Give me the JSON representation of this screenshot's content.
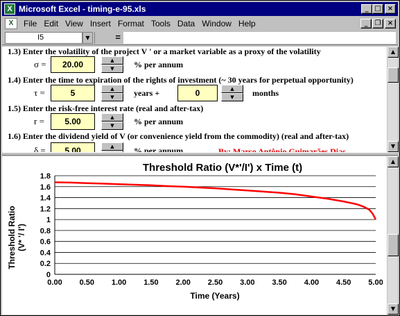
{
  "window": {
    "title": "Microsoft Excel - timing-e-95.xls",
    "app_icon": "excel-icon",
    "title_buttons": [
      "_",
      "□",
      "×"
    ]
  },
  "menubar": {
    "items": [
      "File",
      "Edit",
      "View",
      "Insert",
      "Format",
      "Tools",
      "Data",
      "Window",
      "Help"
    ],
    "doc_buttons": [
      "_",
      "❐",
      "×"
    ]
  },
  "formula_bar": {
    "name_box": "I5",
    "dropdown_glyph": "▼",
    "equals": "=",
    "formula": ""
  },
  "sheet": {
    "section_13": {
      "heading": "1.3) Enter the volatility of the project V ' or a market variable as a proxy of  the volatility",
      "symbol": "σ =",
      "value": "20.00",
      "unit": "% per annum"
    },
    "section_14": {
      "heading": "1.4) Enter the time to expiration of the rights of investment (~ 30 years for perpetual opportunity)",
      "symbol": "τ =",
      "years_value": "5",
      "years_unit": "years +",
      "months_value": "0",
      "months_unit": "months"
    },
    "section_15": {
      "heading": "1.5) Enter the risk-free interest rate (real and after-tax)",
      "symbol": "r =",
      "value": "5.00",
      "unit": "% per annum"
    },
    "section_16": {
      "heading": "1.6) Enter the dividend yield of V (or convenience yield from the commodity) (real and after-tax)",
      "symbol": "δ =",
      "value": "5.00",
      "unit": "% per annum",
      "author": "By: Marco Antônio Guimarães Dias"
    },
    "spinner_up": "▲",
    "spinner_down": "▼"
  },
  "scrollbars": {
    "up": "▲",
    "down": "▼"
  },
  "colors": {
    "title_bar": "#000080",
    "input_fill": "#ffffc0",
    "curve": "#ff0000",
    "author_text": "#e00000"
  },
  "chart_data": {
    "type": "line",
    "title": "Threshold Ratio (V*'/I')  x  Time (t)",
    "xlabel": "Time (Years)",
    "ylabel_line1": "Threshold Ratio",
    "ylabel_line2": "(V* '/ I')",
    "xlim": [
      0,
      5
    ],
    "ylim": [
      0,
      1.8
    ],
    "xticks": [
      "0.00",
      "0.50",
      "1.00",
      "1.50",
      "2.00",
      "2.50",
      "3.00",
      "3.50",
      "4.00",
      "4.50",
      "5.00"
    ],
    "yticks": [
      "0",
      "0.2",
      "0.4",
      "0.6",
      "0.8",
      "1",
      "1.2",
      "1.4",
      "1.6",
      "1.8"
    ],
    "grid": true,
    "series": [
      {
        "x": [
          0,
          0.25,
          0.5,
          0.75,
          1,
          1.25,
          1.5,
          1.75,
          2,
          2.25,
          2.5,
          2.75,
          3,
          3.25,
          3.5,
          3.75,
          4,
          4.25,
          4.5,
          4.7,
          4.8,
          4.9,
          4.95,
          5
        ],
        "y": [
          1.68,
          1.675,
          1.665,
          1.655,
          1.645,
          1.635,
          1.625,
          1.61,
          1.6,
          1.585,
          1.57,
          1.55,
          1.53,
          1.51,
          1.49,
          1.46,
          1.42,
          1.38,
          1.33,
          1.28,
          1.24,
          1.18,
          1.11,
          1.0
        ]
      }
    ]
  }
}
